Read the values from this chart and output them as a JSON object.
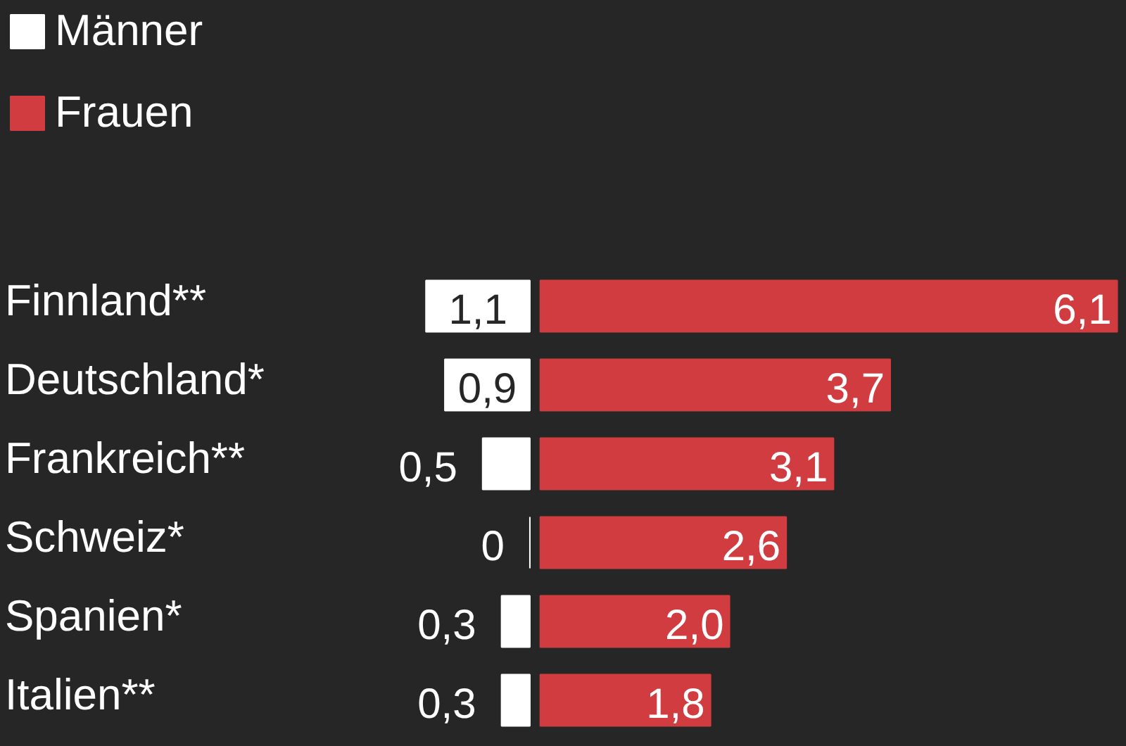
{
  "chart_data": [
    {
      "type": "bar",
      "orientation": "horizontal",
      "categories": [
        "Finnland**",
        "Deutschland*",
        "Frankreich**",
        "Schweiz*",
        "Spanien*",
        "Italien**"
      ],
      "xlim": [
        5.6,
        -0.06
      ],
      "series": [
        {
          "name": "Männer",
          "color": "#ffffff",
          "values": [
            1.1,
            0.9,
            0.5,
            0,
            0.3,
            0.3
          ],
          "value_labels": [
            "1,1",
            "0,9",
            "0,5",
            "0",
            "0,3",
            "0,3"
          ]
        }
      ],
      "legend": "top left"
    },
    {
      "type": "bar",
      "orientation": "horizontal",
      "categories": [
        null,
        null,
        null,
        null,
        null,
        null
      ],
      "xlim": [
        -0.05,
        6.2
      ],
      "series": [
        {
          "name": "Frauen",
          "color": "#d13c41",
          "values": [
            6.1,
            3.7,
            3.1,
            2.6,
            2.0,
            1.8
          ],
          "value_labels": [
            "6,1",
            "3,7",
            "3,1",
            "2,6",
            "2,0",
            "1,8"
          ]
        }
      ],
      "legend": "top left"
    }
  ]
}
